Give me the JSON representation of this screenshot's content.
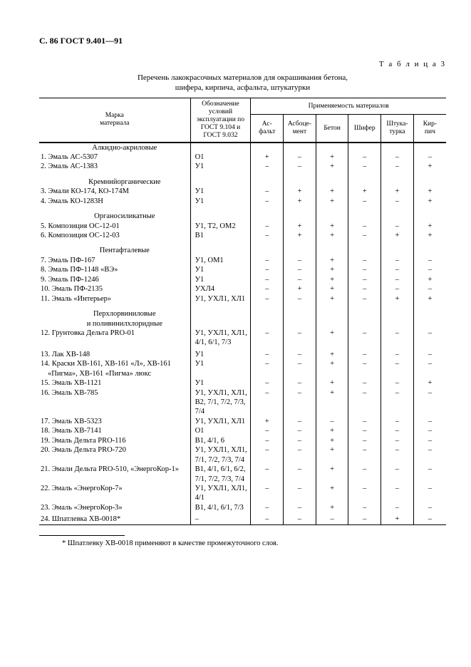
{
  "doc_header": "С. 86 ГОСТ 9.401—91",
  "table_label": "Т а б л и ц а 3",
  "caption_line1": "Перечень лакокрасочных материалов для окрашивания бетона,",
  "caption_line2": "шифера, кирпича, асфальта, штукатурки",
  "head": {
    "name": "Марка\nматериала",
    "cond": "Обозначение условий эксплуатации по ГОСТ 9.104 и ГОСТ 9.032",
    "applic": "Применяемость материалов",
    "m1": "Ас-\nфальт",
    "m2": "Асбоце-\nмент",
    "m3": "Бетон",
    "m4": "Шифер",
    "m5": "Штука-\nтурка",
    "m6": "Кир-\nпич"
  },
  "sections": {
    "s1": "Алкидно-акриловые",
    "s2": "Кремнийорганические",
    "s3": "Органосиликатные",
    "s4": "Пентафталевые",
    "s5": "Перхлорвиниловые",
    "s5b": "и поливинилхлоридные"
  },
  "rows": {
    "r1": {
      "n": "1. Эмаль АС-5307",
      "c": "О1",
      "m": [
        "＋",
        "－",
        "＋",
        "－",
        "－",
        "－"
      ]
    },
    "r2": {
      "n": "2. Эмаль АС-1383",
      "c": "У1",
      "m": [
        "－",
        "－",
        "＋",
        "－",
        "－",
        "＋"
      ]
    },
    "r3": {
      "n": "3. Эмали КО-174, КО-174М",
      "c": "У1",
      "m": [
        "－",
        "＋",
        "＋",
        "＋",
        "＋",
        "＋"
      ]
    },
    "r4": {
      "n": "4. Эмаль КО-1283Н",
      "c": "У1",
      "m": [
        "－",
        "＋",
        "＋",
        "－",
        "－",
        "＋"
      ]
    },
    "r5": {
      "n": "5. Композиция ОС-12-01",
      "c": "У1, Т2, ОМ2",
      "m": [
        "－",
        "＋",
        "＋",
        "－",
        "－",
        "＋"
      ]
    },
    "r6": {
      "n": "6. Композиция ОС-12-03",
      "c": "В1",
      "m": [
        "－",
        "＋",
        "＋",
        "－",
        "＋",
        "＋"
      ]
    },
    "r7": {
      "n": "7. Эмаль ПФ-167",
      "c": "У1, ОМ1",
      "m": [
        "－",
        "－",
        "＋",
        "－",
        "－",
        "－"
      ]
    },
    "r8": {
      "n": "8. Эмаль ПФ-1148 «ВЭ»",
      "c": "У1",
      "m": [
        "－",
        "－",
        "＋",
        "－",
        "－",
        "－"
      ]
    },
    "r9": {
      "n": "9. Эмаль ПФ-1246",
      "c": "У1",
      "m": [
        "－",
        "－",
        "＋",
        "－",
        "－",
        "＋"
      ]
    },
    "r10": {
      "n": "10. Эмаль ПФ-2135",
      "c": "УХЛ4",
      "m": [
        "－",
        "＋",
        "＋",
        "－",
        "－",
        "－"
      ]
    },
    "r11": {
      "n": "11. Эмаль «Интерьер»",
      "c": "У1, УХЛ1, ХЛ1",
      "m": [
        "－",
        "－",
        "＋",
        "－",
        "＋",
        "＋"
      ]
    },
    "r12": {
      "n": "12. Грунтовка Дельта PRO-01",
      "c": "У1, УХЛ1, ХЛ1, 4/1, 6/1, 7/3",
      "m": [
        "－",
        "－",
        "＋",
        "－",
        "－",
        "－"
      ]
    },
    "r13": {
      "n": "13. Лак ХВ-148",
      "c": "У1",
      "m": [
        "－",
        "－",
        "＋",
        "－",
        "－",
        "－"
      ]
    },
    "r14": {
      "n": "14. Краски ХВ-161, ХВ-161 «Л», ХВ-161 «Пигма», ХВ-161 «Пигма» люкс",
      "c": "У1",
      "m": [
        "－",
        "－",
        "＋",
        "－",
        "－",
        "－"
      ]
    },
    "r15": {
      "n": "15. Эмаль ХВ-1121",
      "c": "У1",
      "m": [
        "－",
        "－",
        "＋",
        "－",
        "－",
        "＋"
      ]
    },
    "r16": {
      "n": "16. Эмаль ХВ-785",
      "c": "У1, УХЛ1, ХЛ1, В2, 7/1, 7/2, 7/3, 7/4",
      "m": [
        "－",
        "－",
        "＋",
        "－",
        "－",
        "－"
      ]
    },
    "r17": {
      "n": "17. Эмаль ХВ-5323",
      "c": "У1, УХЛ1, ХЛ1",
      "m": [
        "＋",
        "－",
        "－",
        "－",
        "－",
        "－"
      ]
    },
    "r18": {
      "n": "18. Эмаль ХВ-7141",
      "c": "О1",
      "m": [
        "－",
        "－",
        "＋",
        "－",
        "－",
        "－"
      ]
    },
    "r19": {
      "n": "19. Эмаль Дельта PRO-116",
      "c": "В1, 4/1, 6",
      "m": [
        "－",
        "－",
        "＋",
        "－",
        "－",
        "－"
      ]
    },
    "r20": {
      "n": "20. Эмаль Дельта PRO-720",
      "c": "У1, УХЛ1, ХЛ1, 7/1, 7/2, 7/3, 7/4",
      "m": [
        "－",
        "－",
        "＋",
        "－",
        "－",
        "－"
      ]
    },
    "r21": {
      "n": "21. Эмали Дельта PRO-510, «ЭнергоКор-1»",
      "c": "В1, 4/1, 6/1, 6/2, 7/1, 7/2, 7/3, 7/4",
      "m": [
        "－",
        "－",
        "＋",
        "－",
        "－",
        "－"
      ]
    },
    "r22": {
      "n": "22. Эмаль «ЭнергоКор-7»",
      "c": "У1, УХЛ1, ХЛ1, 4/1",
      "m": [
        "－",
        "－",
        "＋",
        "－",
        "－",
        "－"
      ]
    },
    "r23": {
      "n": "23. Эмаль «ЭнергоКор-3»",
      "c": "В1, 4/1, 6/1, 7/3",
      "m": [
        "－",
        "－",
        "＋",
        "－",
        "－",
        "－"
      ]
    },
    "r24": {
      "n": "24. Шпатлевка ХВ-0018*",
      "c": "–",
      "m": [
        "－",
        "－",
        "－",
        "－",
        "＋",
        "－"
      ]
    }
  },
  "footnote": "* Шпатлевку ХВ-0018 применяют в качестве промежуточного слоя."
}
